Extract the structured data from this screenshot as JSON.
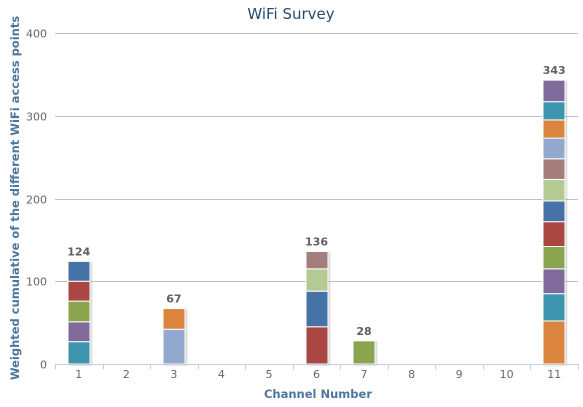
{
  "chart_data": {
    "type": "bar",
    "stacked": true,
    "title": "WiFi Survey",
    "xlabel": "Channel Number",
    "ylabel": "Weighted cumulative of the different WiFi access points",
    "ylim": [
      0,
      400
    ],
    "yticks": [
      0,
      100,
      200,
      300,
      400
    ],
    "grid": "horizontal",
    "legend": "none",
    "categories": [
      "1",
      "2",
      "3",
      "4",
      "5",
      "6",
      "7",
      "8",
      "9",
      "10",
      "11"
    ],
    "totals": [
      124,
      null,
      67,
      null,
      null,
      136,
      28,
      null,
      null,
      null,
      343
    ],
    "segments": [
      [
        {
          "value": 27,
          "color": "#3d96ae"
        },
        {
          "value": 24,
          "color": "#80699b"
        },
        {
          "value": 25,
          "color": "#89a54e"
        },
        {
          "value": 24,
          "color": "#aa4643"
        },
        {
          "value": 24,
          "color": "#4572a7"
        }
      ],
      [],
      [
        {
          "value": 42,
          "color": "#92a8cd"
        },
        {
          "value": 25,
          "color": "#db843d"
        }
      ],
      [],
      [],
      [
        {
          "value": 45,
          "color": "#aa4643"
        },
        {
          "value": 43,
          "color": "#4572a7"
        },
        {
          "value": 27,
          "color": "#b5ca92"
        },
        {
          "value": 21,
          "color": "#a47d7c"
        }
      ],
      [
        {
          "value": 28,
          "color": "#89a54e"
        }
      ],
      [],
      [],
      [],
      [
        {
          "value": 52,
          "color": "#db843d"
        },
        {
          "value": 33,
          "color": "#3d96ae"
        },
        {
          "value": 30,
          "color": "#80699b"
        },
        {
          "value": 27,
          "color": "#89a54e"
        },
        {
          "value": 30,
          "color": "#aa4643"
        },
        {
          "value": 25,
          "color": "#4572a7"
        },
        {
          "value": 26,
          "color": "#b5ca92"
        },
        {
          "value": 25,
          "color": "#a47d7c"
        },
        {
          "value": 25,
          "color": "#92a8cd"
        },
        {
          "value": 22,
          "color": "#db843d"
        },
        {
          "value": 22,
          "color": "#3d96ae"
        },
        {
          "value": 26,
          "color": "#80699b"
        }
      ]
    ],
    "colors": {
      "title": "#274b6d",
      "axis_label": "#4d759e",
      "tick_label": "#666666",
      "data_label": "#606060",
      "grid": "#c0c0c0",
      "axis_line": "#c0d0e0"
    }
  }
}
